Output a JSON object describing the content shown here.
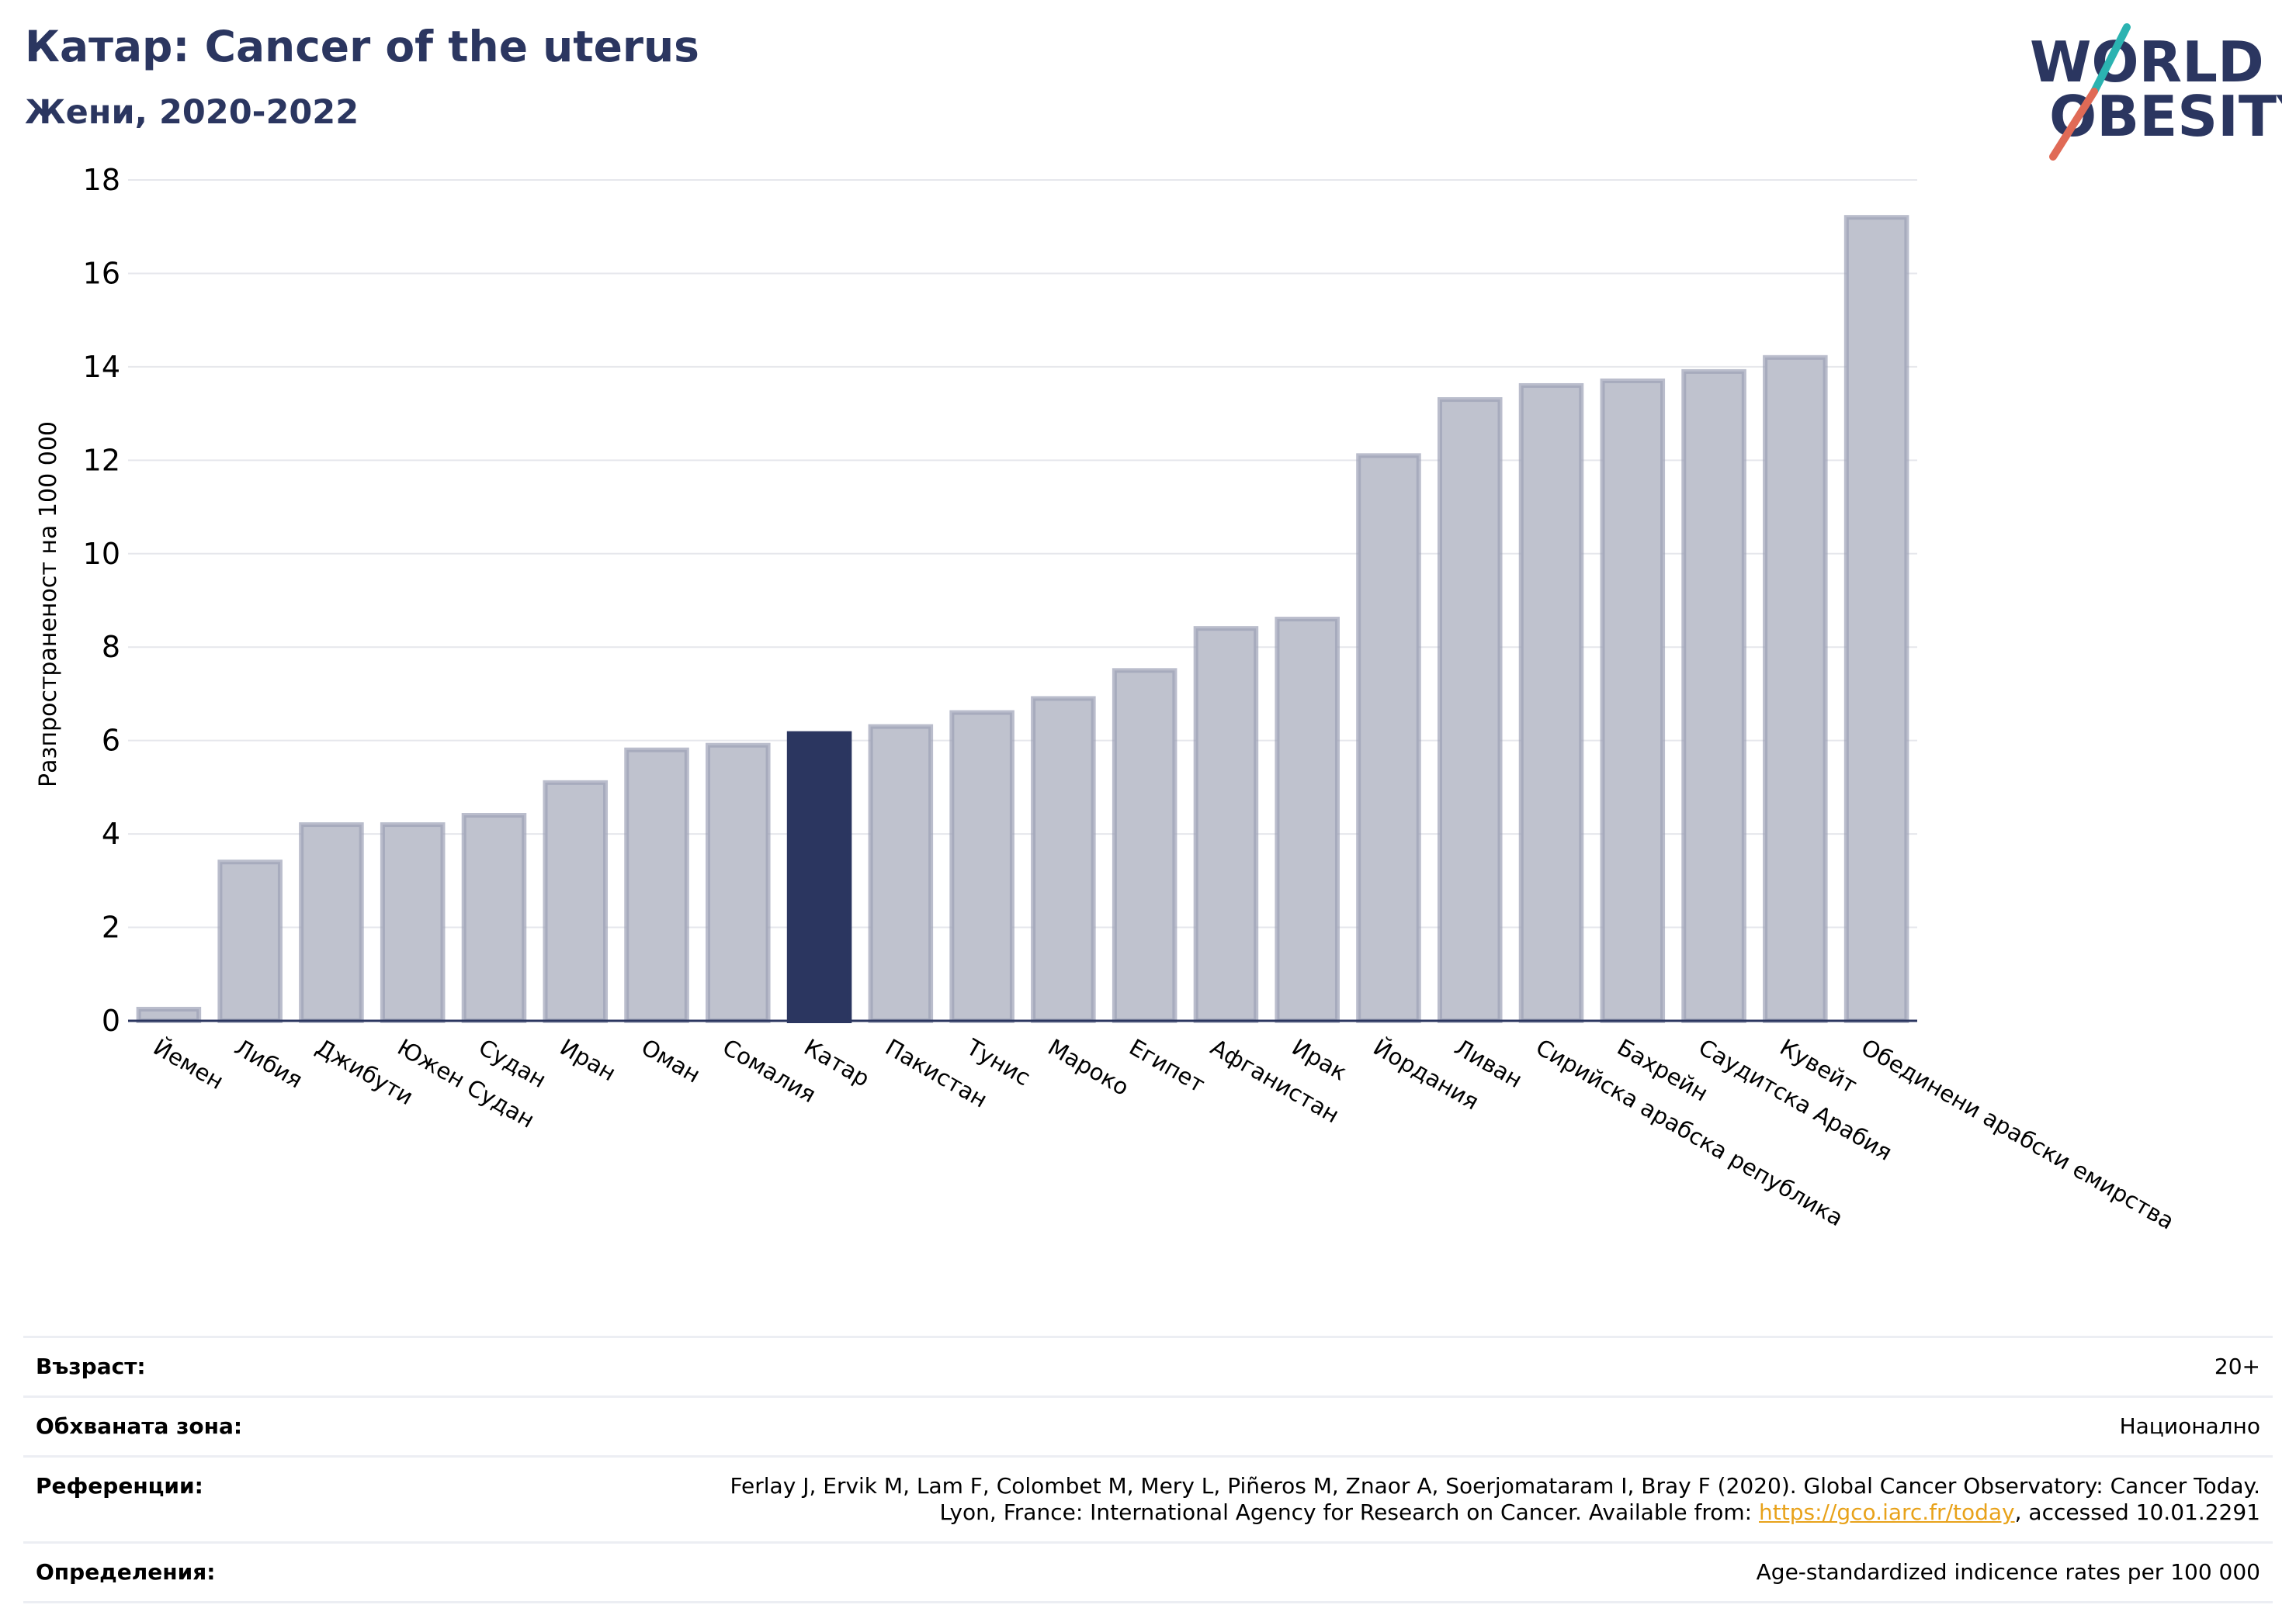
{
  "header": {
    "title": "Катар: Cancer of the uterus",
    "subtitle": "Жени, 2020-2022"
  },
  "logo": {
    "line1": "WORLD",
    "line2": "OBESITY",
    "icon": "world-obesity-logo"
  },
  "colors": {
    "bar": "#bfc2ce",
    "bar_edge": "#9ca1b6",
    "highlight": "#2b3660",
    "title": "#2b3660",
    "link": "#e8a21a"
  },
  "chart_data": {
    "type": "bar",
    "title": "Катар: Cancer of the uterus",
    "subtitle": "Жени, 2020-2022",
    "xlabel": "",
    "ylabel": "Разпространеност  на 100 000",
    "ylim": [
      0,
      18
    ],
    "yticks": [
      0,
      2,
      4,
      6,
      8,
      10,
      12,
      14,
      16,
      18
    ],
    "grid": true,
    "highlight": "Катар",
    "categories": [
      "Йемен",
      "Либия",
      "Джибути",
      "Южен Судан",
      "Судан",
      "Иран",
      "Оман",
      "Сомалия",
      "Катар",
      "Пакистан",
      "Тунис",
      "Мароко",
      "Египет",
      "Афганистан",
      "Ирак",
      "Йордания",
      "Ливан",
      "Сирийска арабска република",
      "Бахрейн",
      "Саудитска Арабия",
      "Кувейт",
      "Обединени арабски емирства"
    ],
    "values": [
      0.25,
      3.4,
      4.2,
      4.2,
      4.4,
      5.1,
      5.8,
      5.9,
      6.15,
      6.3,
      6.6,
      6.9,
      7.5,
      8.4,
      8.6,
      12.1,
      13.3,
      13.6,
      13.7,
      13.9,
      14.2,
      17.2
    ]
  },
  "info": {
    "rows": [
      {
        "label": "Възраст:",
        "value": "20+"
      },
      {
        "label": "Обхваната зона:",
        "value": "Национално"
      },
      {
        "label": "Референции:",
        "value_line1": "Ferlay J, Ervik M, Lam F, Colombet M, Mery L, Piñeros M, Znaor A, Soerjomataram I, Bray F (2020). Global Cancer Observatory: Cancer Today.",
        "value_line2_pre": "Lyon, France: International Agency for Research on Cancer. Available from: ",
        "link_text": "https://gco.iarc.fr/today",
        "value_line2_post": ", accessed 10.01.2291"
      },
      {
        "label": "Определения:",
        "value": "Age-standardized indicence rates per 100 000"
      }
    ]
  }
}
